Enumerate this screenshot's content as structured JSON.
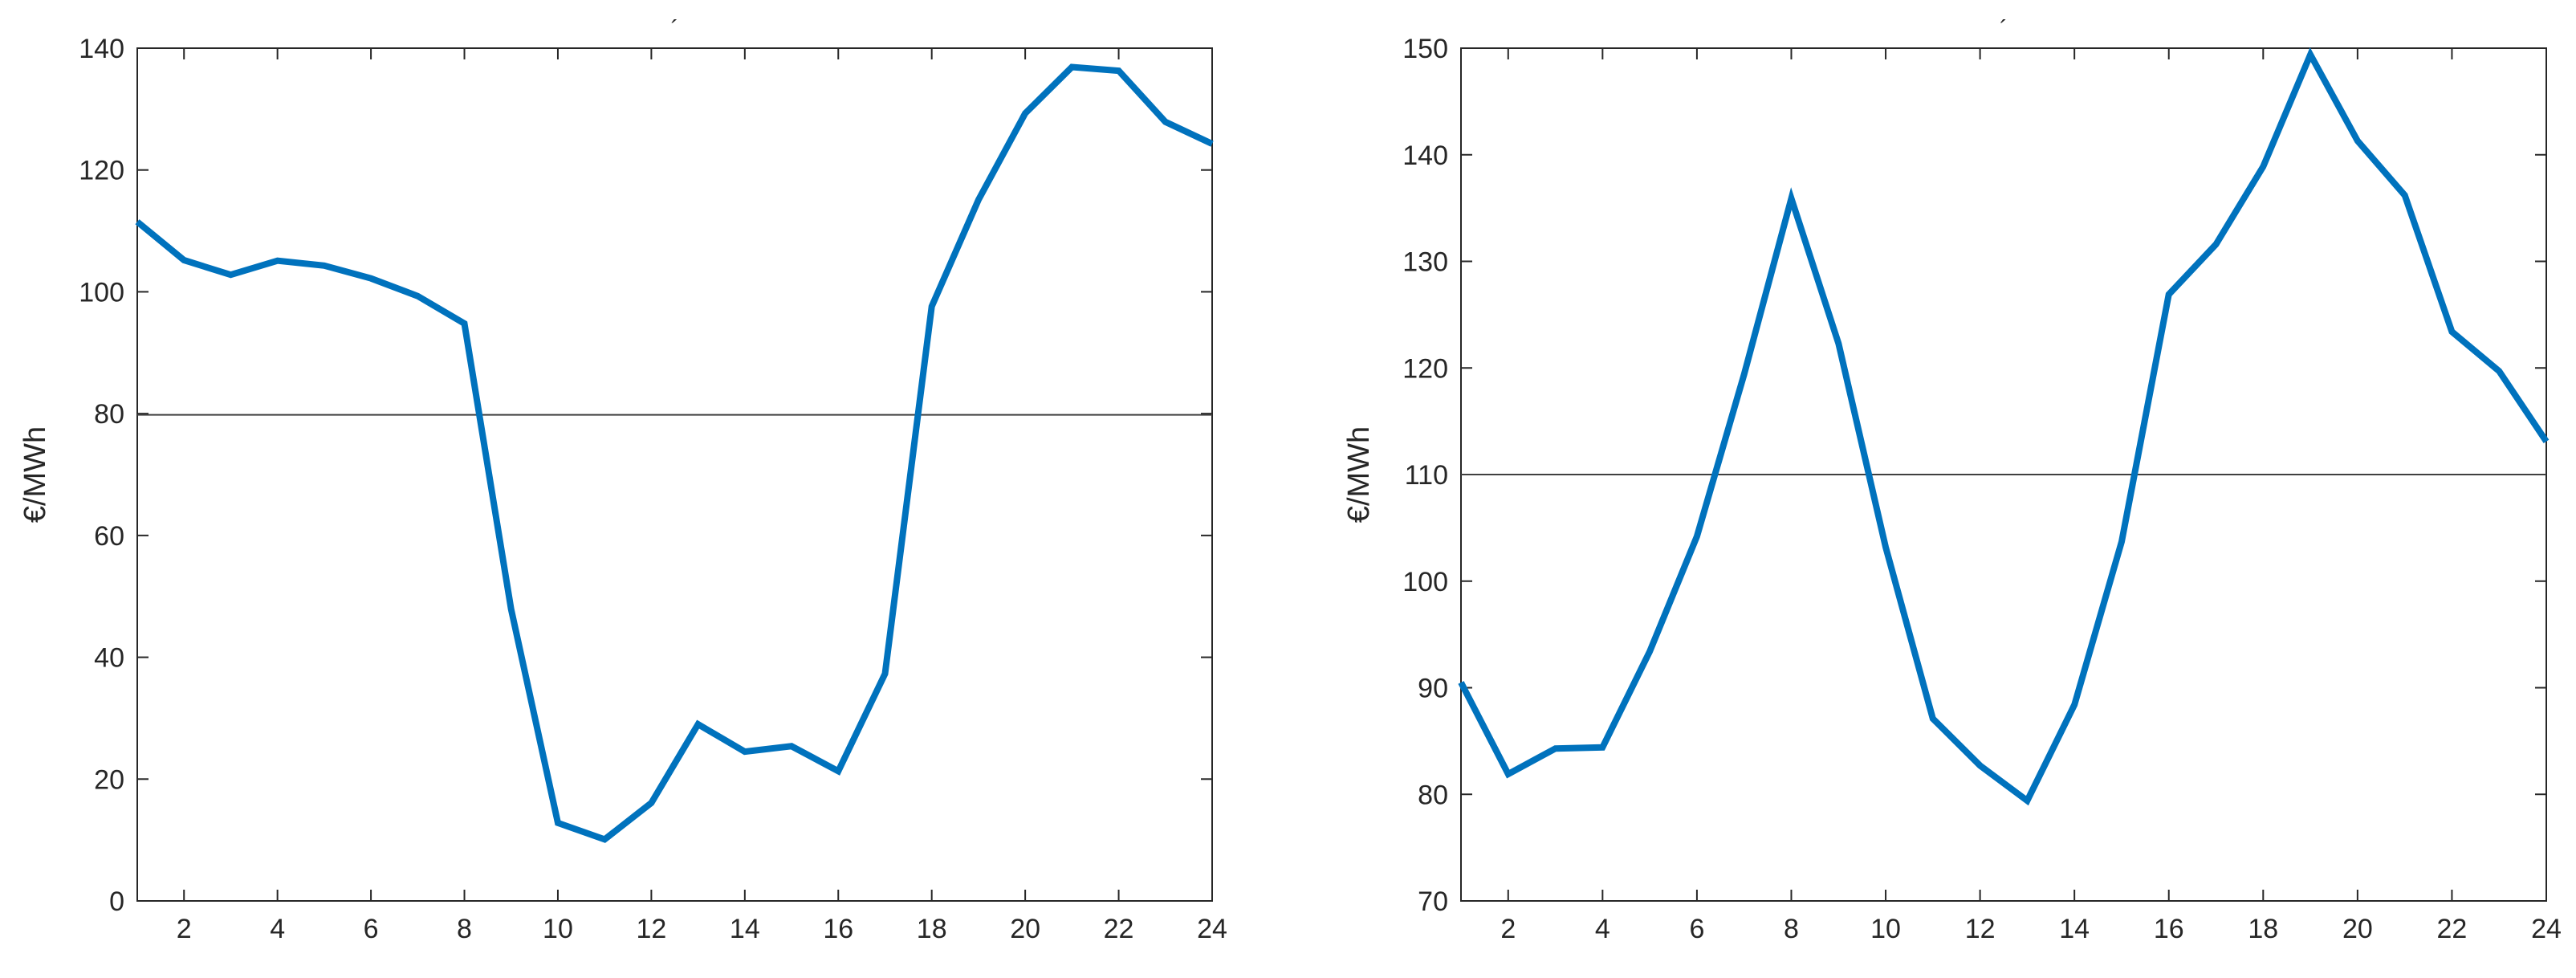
{
  "chart_data": [
    {
      "type": "line",
      "title": "´",
      "xlabel": "",
      "ylabel": "€/MWh",
      "x": [
        1,
        2,
        3,
        4,
        5,
        6,
        7,
        8,
        9,
        10,
        11,
        12,
        13,
        14,
        15,
        16,
        17,
        18,
        19,
        20,
        21,
        22,
        23,
        24
      ],
      "series": [
        {
          "values": [
            111.5,
            105.2,
            102.8,
            105.1,
            104.3,
            102.2,
            99.3,
            94.8,
            47.9,
            12.8,
            10.1,
            16.1,
            29.0,
            24.5,
            25.4,
            21.3,
            37.3,
            97.6,
            115.1,
            129.3,
            136.9,
            136.3,
            127.9,
            124.3
          ]
        }
      ],
      "reference_line": 79.8,
      "xlim": [
        1,
        24
      ],
      "ylim": [
        0,
        140
      ],
      "xticks": [
        2,
        4,
        6,
        8,
        10,
        12,
        14,
        16,
        18,
        20,
        22,
        24
      ],
      "yticks": [
        0,
        20,
        40,
        60,
        80,
        100,
        120,
        140
      ],
      "grid": false,
      "line_color": "#0072BD",
      "ref_color": "#404040"
    },
    {
      "type": "line",
      "title": "´",
      "xlabel": "",
      "ylabel": "€/MWh",
      "x": [
        1,
        2,
        3,
        4,
        5,
        6,
        7,
        8,
        9,
        10,
        11,
        12,
        13,
        14,
        15,
        16,
        17,
        18,
        19,
        20,
        21,
        22,
        23,
        24
      ],
      "series": [
        {
          "values": [
            90.5,
            81.9,
            84.3,
            84.4,
            93.4,
            104.2,
            119.4,
            135.9,
            122.3,
            103.2,
            87.1,
            82.7,
            79.4,
            88.4,
            103.7,
            126.9,
            131.6,
            138.9,
            149.4,
            141.3,
            136.2,
            123.4,
            119.7,
            113.1
          ]
        }
      ],
      "reference_line": 110,
      "xlim": [
        1,
        24
      ],
      "ylim": [
        70,
        150
      ],
      "xticks": [
        2,
        4,
        6,
        8,
        10,
        12,
        14,
        16,
        18,
        20,
        22,
        24
      ],
      "yticks": [
        70,
        80,
        90,
        100,
        110,
        120,
        130,
        140,
        150
      ],
      "grid": false,
      "line_color": "#0072BD",
      "ref_color": "#404040"
    }
  ]
}
